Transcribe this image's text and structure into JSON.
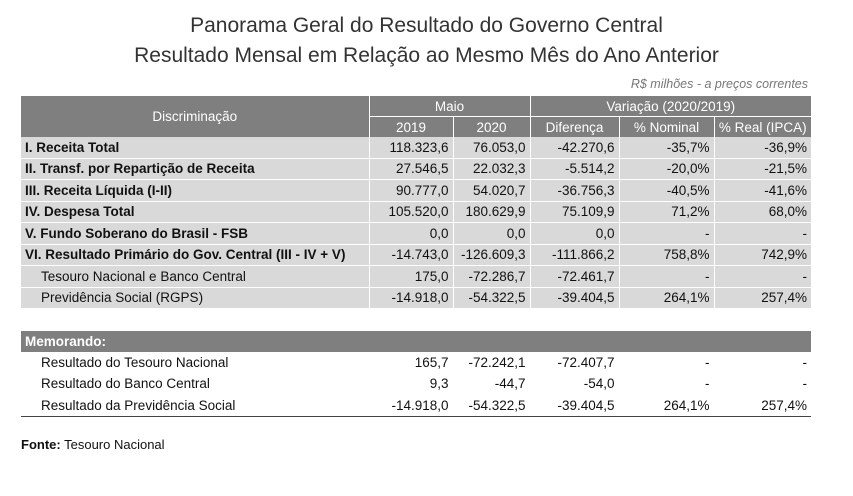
{
  "title": "Panorama Geral do Resultado do Governo Central",
  "subtitle": "Resultado Mensal em Relação ao Mesmo Mês do Ano Anterior",
  "unit_note": "R$ milhões - a preços correntes",
  "header": {
    "discriminacao": "Discriminação",
    "maio": "Maio",
    "variacao": "Variação (2020/2019)",
    "y2019": "2019",
    "y2020": "2020",
    "diferenca": "Diferença",
    "pct_nominal": "% Nominal",
    "pct_real": "% Real (IPCA)"
  },
  "rows": [
    {
      "label": "I. Receita Total",
      "v2019": "118.323,6",
      "v2020": "76.053,0",
      "dif": "-42.270,6",
      "nom": "-35,7%",
      "real": "-36,9%"
    },
    {
      "label": "II. Transf. por Repartição de Receita",
      "v2019": "27.546,5",
      "v2020": "22.032,3",
      "dif": "-5.514,2",
      "nom": "-20,0%",
      "real": "-21,5%"
    },
    {
      "label": "III. Receita Líquida (I-II)",
      "v2019": "90.777,0",
      "v2020": "54.020,7",
      "dif": "-36.756,3",
      "nom": "-40,5%",
      "real": "-41,6%"
    },
    {
      "label": "IV. Despesa Total",
      "v2019": "105.520,0",
      "v2020": "180.629,9",
      "dif": "75.109,9",
      "nom": "71,2%",
      "real": "68,0%"
    },
    {
      "label": "V. Fundo Soberano do Brasil - FSB",
      "v2019": "0,0",
      "v2020": "0,0",
      "dif": "0,0",
      "nom": "-",
      "real": "-"
    },
    {
      "label": "VI. Resultado Primário do Gov. Central (III - IV + V)",
      "v2019": "-14.743,0",
      "v2020": "-126.609,3",
      "dif": "-111.866,2",
      "nom": "758,8%",
      "real": "742,9%"
    },
    {
      "label": "Tesouro Nacional e Banco Central",
      "v2019": "175,0",
      "v2020": "-72.286,7",
      "dif": "-72.461,7",
      "nom": "-",
      "real": "-"
    },
    {
      "label": "Previdência Social (RGPS)",
      "v2019": "-14.918,0",
      "v2020": "-54.322,5",
      "dif": "-39.404,5",
      "nom": "264,1%",
      "real": "257,4%"
    }
  ],
  "memo": {
    "title": "Memorando:",
    "rows": [
      {
        "label": "Resultado do Tesouro Nacional",
        "v2019": "165,7",
        "v2020": "-72.242,1",
        "dif": "-72.407,7",
        "nom": "-",
        "real": "-"
      },
      {
        "label": "Resultado do Banco Central",
        "v2019": "9,3",
        "v2020": "-44,7",
        "dif": "-54,0",
        "nom": "-",
        "real": "-"
      },
      {
        "label": "Resultado da Previdência Social",
        "v2019": "-14.918,0",
        "v2020": "-54.322,5",
        "dif": "-39.404,5",
        "nom": "264,1%",
        "real": "257,4%"
      }
    ]
  },
  "source": {
    "label": "Fonte:",
    "text": "Tesouro Nacional"
  }
}
